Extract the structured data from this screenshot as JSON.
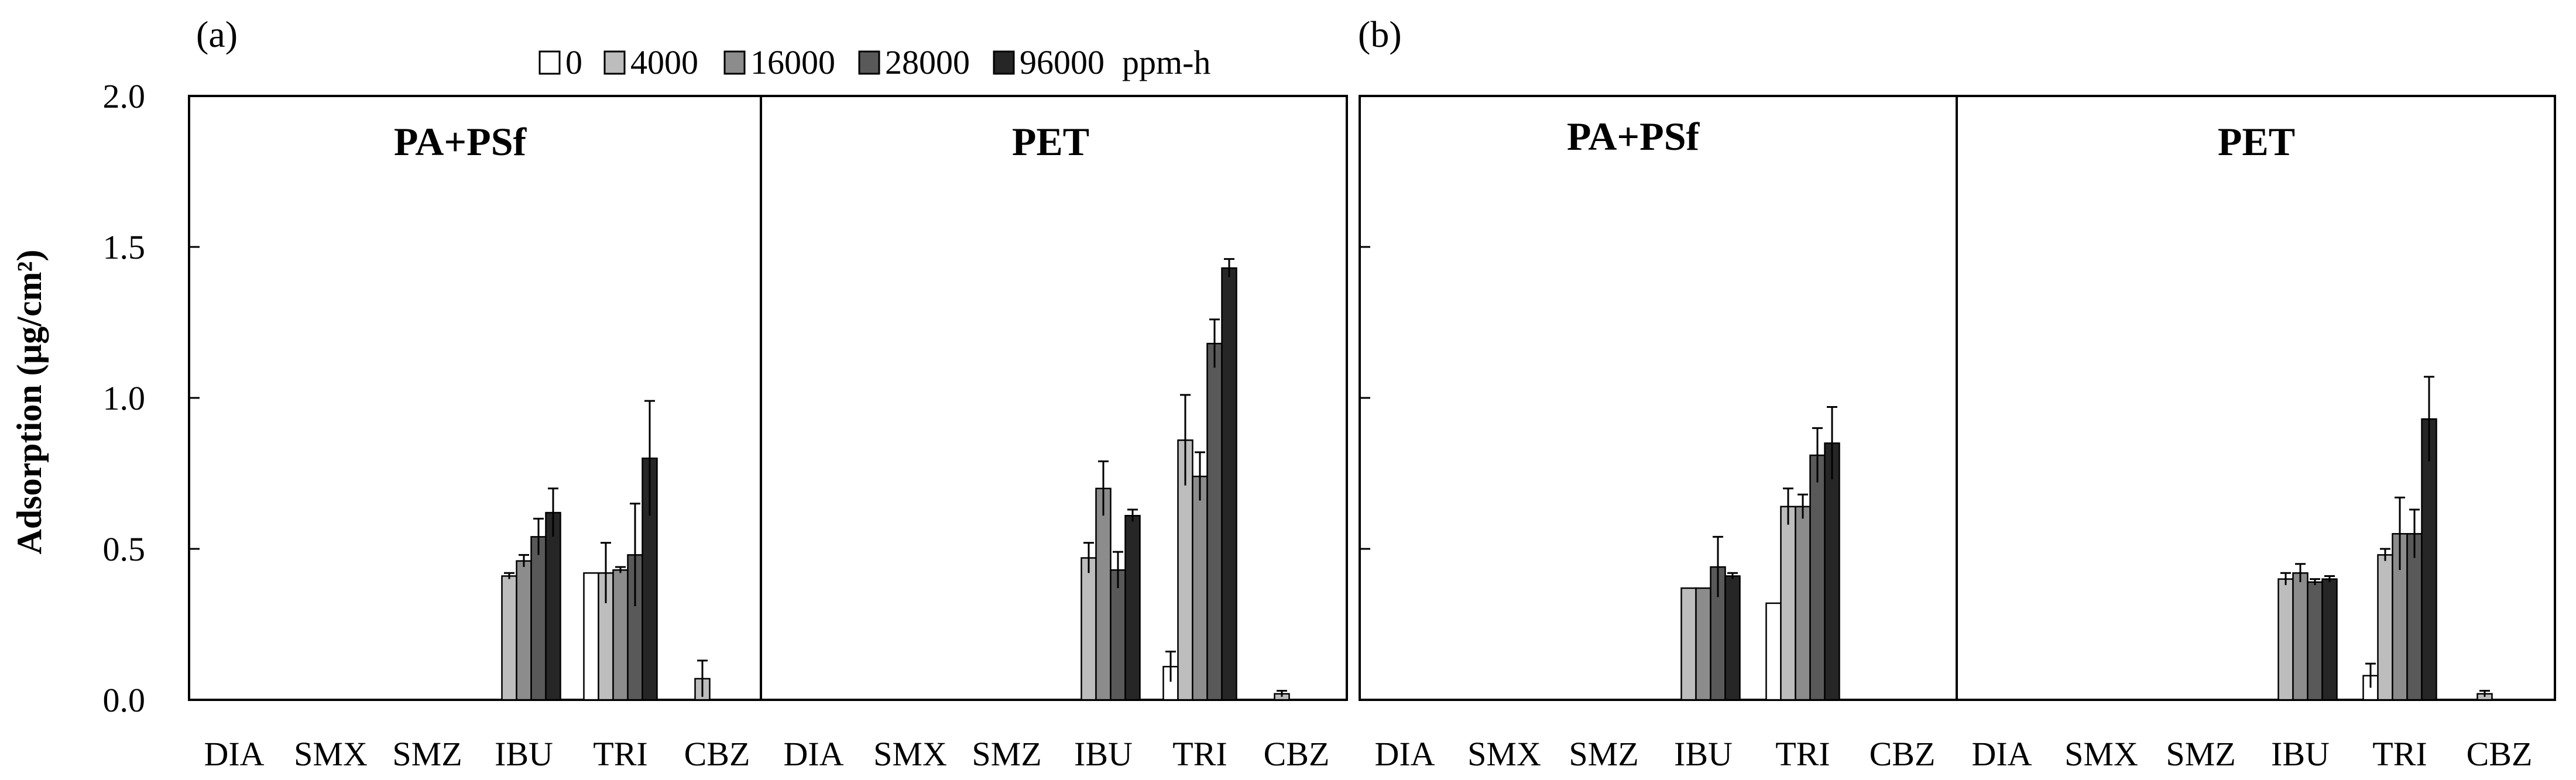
{
  "chart_data": {
    "type": "bar",
    "ylabel": "Adsorption (µg/cm²)",
    "ylim": [
      0,
      2.0
    ],
    "yticks": [
      "0.0",
      "0.5",
      "1.0",
      "1.5",
      "2.0"
    ],
    "ytick_values": [
      0,
      0.5,
      1.0,
      1.5,
      2.0
    ],
    "categories": [
      "DIA",
      "SMX",
      "SMZ",
      "IBU",
      "TRI",
      "CBZ"
    ],
    "legend": {
      "position": "top",
      "unit": "ppm-h",
      "entries": [
        {
          "label": "0",
          "color": "#ffffff"
        },
        {
          "label": "4000",
          "color": "#bdbdbd"
        },
        {
          "label": "16000",
          "color": "#8c8c8c"
        },
        {
          "label": "28000",
          "color": "#595959"
        },
        {
          "label": "96000",
          "color": "#262626"
        }
      ]
    },
    "panels": [
      {
        "letter": "(a)",
        "groups": [
          {
            "title": "PA+PSf",
            "series": [
              {
                "name": "0",
                "values": [
                  0,
                  0,
                  0,
                  0,
                  0.42,
                  0
                ],
                "errors": [
                  0,
                  0,
                  0,
                  0,
                  0,
                  0
                ]
              },
              {
                "name": "4000",
                "values": [
                  0,
                  0,
                  0,
                  0.41,
                  0.42,
                  0.07
                ],
                "errors": [
                  0,
                  0,
                  0,
                  0.01,
                  0.1,
                  0.06
                ]
              },
              {
                "name": "16000",
                "values": [
                  0,
                  0,
                  0,
                  0.46,
                  0.43,
                  0
                ],
                "errors": [
                  0,
                  0,
                  0,
                  0.02,
                  0.01,
                  0
                ]
              },
              {
                "name": "28000",
                "values": [
                  0,
                  0,
                  0,
                  0.54,
                  0.48,
                  0
                ],
                "errors": [
                  0,
                  0,
                  0,
                  0.06,
                  0.17,
                  0
                ]
              },
              {
                "name": "96000",
                "values": [
                  0,
                  0,
                  0,
                  0.62,
                  0.8,
                  0
                ],
                "errors": [
                  0,
                  0,
                  0,
                  0.08,
                  0.19,
                  0
                ]
              }
            ]
          },
          {
            "title": "PET",
            "series": [
              {
                "name": "0",
                "values": [
                  0,
                  0,
                  0,
                  0,
                  0.11,
                  0
                ],
                "errors": [
                  0,
                  0,
                  0,
                  0,
                  0.05,
                  0
                ]
              },
              {
                "name": "4000",
                "values": [
                  0,
                  0,
                  0,
                  0.47,
                  0.86,
                  0.02
                ],
                "errors": [
                  0,
                  0,
                  0,
                  0.05,
                  0.15,
                  0.01
                ]
              },
              {
                "name": "16000",
                "values": [
                  0,
                  0,
                  0,
                  0.7,
                  0.74,
                  0
                ],
                "errors": [
                  0,
                  0,
                  0,
                  0.09,
                  0.08,
                  0
                ]
              },
              {
                "name": "28000",
                "values": [
                  0,
                  0,
                  0,
                  0.43,
                  1.18,
                  0
                ],
                "errors": [
                  0,
                  0,
                  0,
                  0.06,
                  0.08,
                  0
                ]
              },
              {
                "name": "96000",
                "values": [
                  0,
                  0,
                  0,
                  0.61,
                  1.43,
                  0
                ],
                "errors": [
                  0,
                  0,
                  0,
                  0.02,
                  0.03,
                  0
                ]
              }
            ]
          }
        ]
      },
      {
        "letter": "(b)",
        "groups": [
          {
            "title": "PA+PSf",
            "series": [
              {
                "name": "0",
                "values": [
                  0,
                  0,
                  0,
                  0,
                  0.32,
                  0
                ],
                "errors": [
                  0,
                  0,
                  0,
                  0,
                  0,
                  0
                ]
              },
              {
                "name": "4000",
                "values": [
                  0,
                  0,
                  0,
                  0.37,
                  0.64,
                  0
                ],
                "errors": [
                  0,
                  0,
                  0,
                  0,
                  0.06,
                  0
                ]
              },
              {
                "name": "16000",
                "values": [
                  0,
                  0,
                  0,
                  0.37,
                  0.64,
                  0
                ],
                "errors": [
                  0,
                  0,
                  0,
                  0,
                  0.04,
                  0
                ]
              },
              {
                "name": "28000",
                "values": [
                  0,
                  0,
                  0,
                  0.44,
                  0.81,
                  0
                ],
                "errors": [
                  0,
                  0,
                  0,
                  0.1,
                  0.09,
                  0
                ]
              },
              {
                "name": "96000",
                "values": [
                  0,
                  0,
                  0,
                  0.41,
                  0.85,
                  0
                ],
                "errors": [
                  0,
                  0,
                  0,
                  0.01,
                  0.12,
                  0
                ]
              }
            ]
          },
          {
            "title": "PET",
            "series": [
              {
                "name": "0",
                "values": [
                  0,
                  0,
                  0,
                  0,
                  0.08,
                  0
                ],
                "errors": [
                  0,
                  0,
                  0,
                  0,
                  0.04,
                  0
                ]
              },
              {
                "name": "4000",
                "values": [
                  0,
                  0,
                  0,
                  0.4,
                  0.48,
                  0.02
                ],
                "errors": [
                  0,
                  0,
                  0,
                  0.02,
                  0.02,
                  0.01
                ]
              },
              {
                "name": "16000",
                "values": [
                  0,
                  0,
                  0,
                  0.42,
                  0.55,
                  0
                ],
                "errors": [
                  0,
                  0,
                  0,
                  0.03,
                  0.12,
                  0
                ]
              },
              {
                "name": "28000",
                "values": [
                  0,
                  0,
                  0,
                  0.39,
                  0.55,
                  0
                ],
                "errors": [
                  0,
                  0,
                  0,
                  0.01,
                  0.08,
                  0
                ]
              },
              {
                "name": "96000",
                "values": [
                  0,
                  0,
                  0,
                  0.4,
                  0.93,
                  0
                ],
                "errors": [
                  0,
                  0,
                  0,
                  0.01,
                  0.14,
                  0
                ]
              }
            ]
          }
        ]
      }
    ]
  }
}
